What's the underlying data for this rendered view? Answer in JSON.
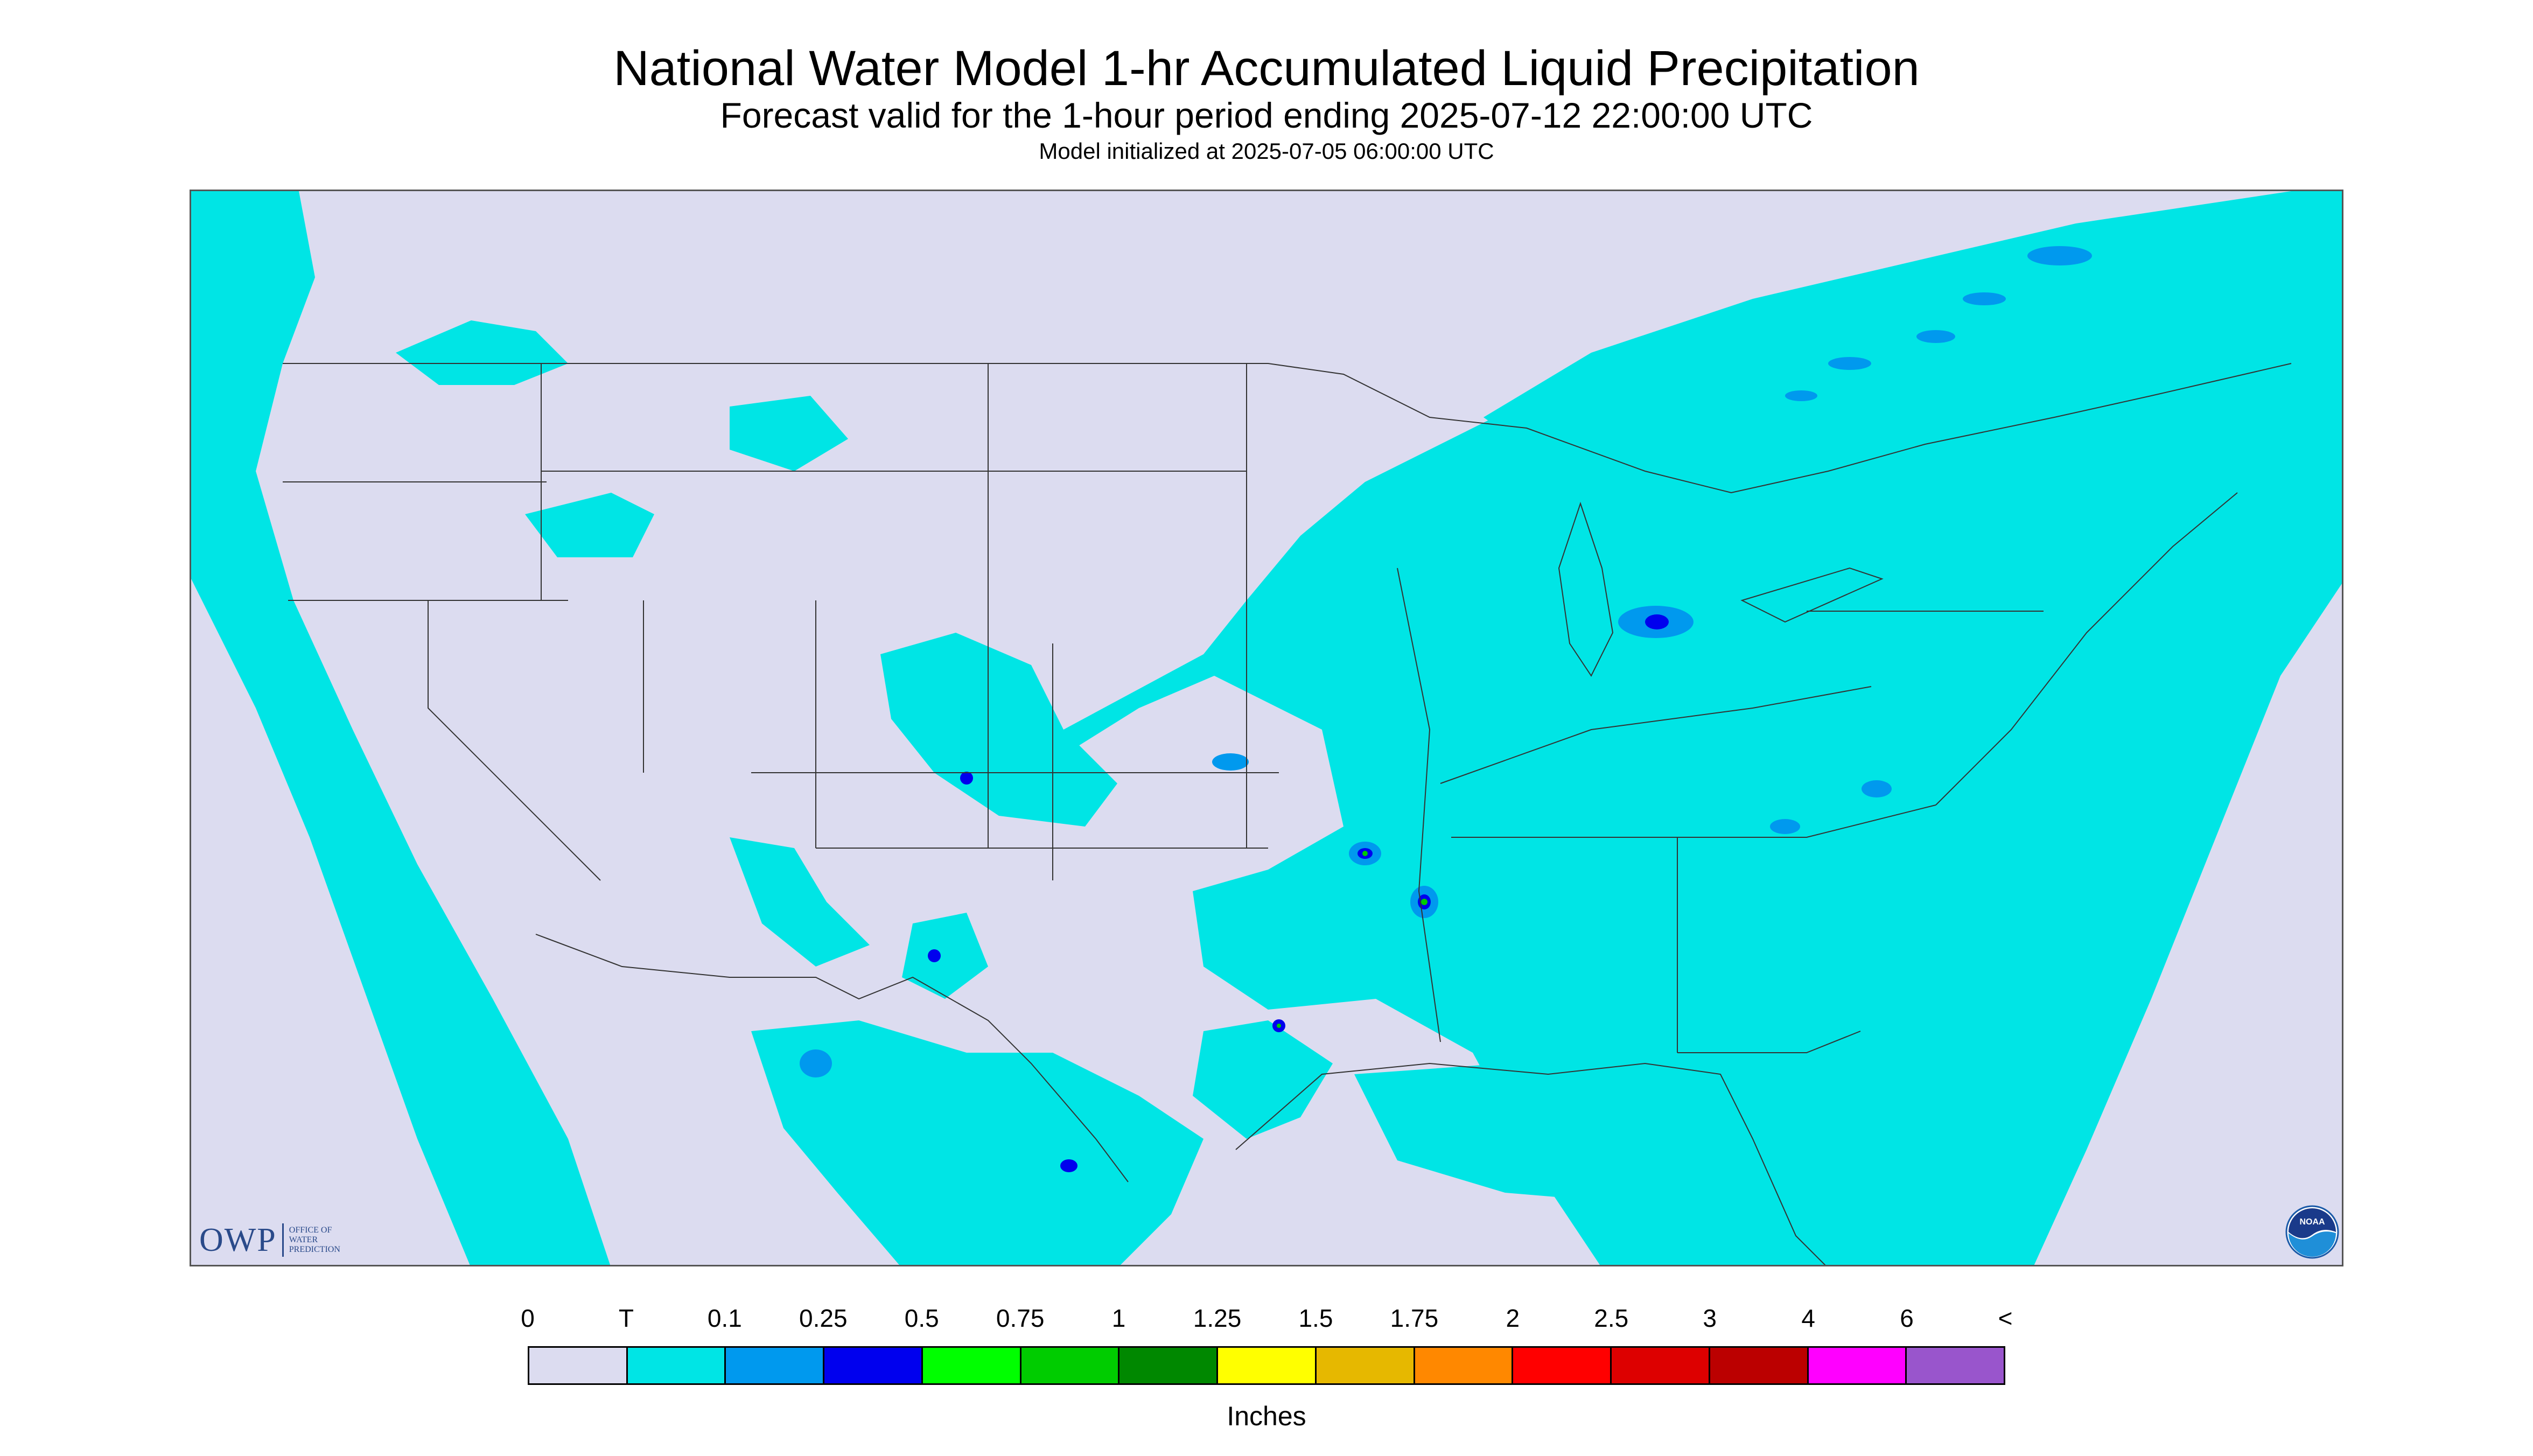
{
  "header": {
    "title": "National Water Model 1-hr Accumulated Liquid Precipitation",
    "subtitle": "Forecast valid for the 1-hour period ending 2025-07-12 22:00:00 UTC",
    "init": "Model initialized at 2025-07-05 06:00:00 UTC"
  },
  "logos": {
    "owp_mark": "OWP",
    "owp_line1": "OFFICE OF",
    "owp_line2": "WATER",
    "owp_line3": "PREDICTION",
    "noaa": "NOAA"
  },
  "legend": {
    "labels": [
      "0",
      "T",
      "0.1",
      "0.25",
      "0.5",
      "0.75",
      "1",
      "1.25",
      "1.5",
      "1.75",
      "2",
      "2.5",
      "3",
      "4",
      "6",
      "<"
    ],
    "colors": [
      "#dcdcf0",
      "#00e5e5",
      "#0099ee",
      "#0000ee",
      "#00ff00",
      "#00cc00",
      "#008800",
      "#ffff00",
      "#e6b800",
      "#ff8800",
      "#ff0000",
      "#dd0000",
      "#bb0000",
      "#ff00ff",
      "#9955cc"
    ],
    "units": "Inches"
  },
  "colors": {
    "no_data_band": "#dcdcf0",
    "trace": "#00e5e5",
    "light": "#0099ee",
    "medium": "#0000ee",
    "green": "#00cc00",
    "border": "#333333"
  }
}
